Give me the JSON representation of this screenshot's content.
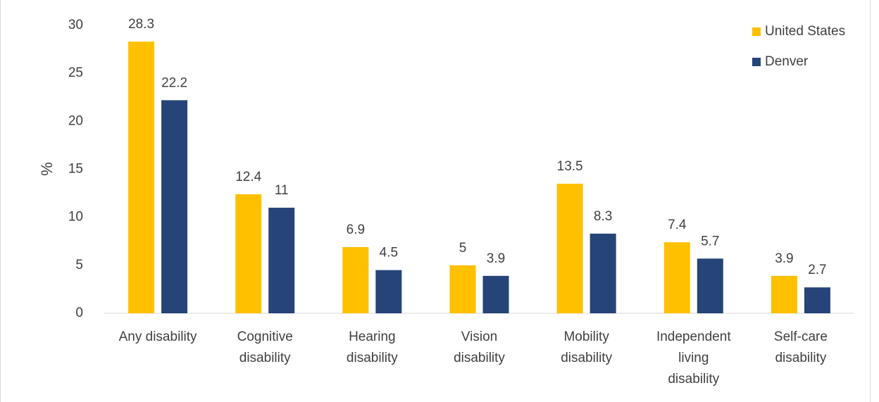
{
  "chart_data": {
    "type": "bar",
    "categories": [
      "Any disability",
      "Cognitive disability",
      "Hearing disability",
      "Vision disability",
      "Mobility disability",
      "Independent living disability",
      "Self-care disability"
    ],
    "series": [
      {
        "name": "United States",
        "color": "#ffc000",
        "values": [
          28.3,
          12.4,
          6.9,
          5,
          13.5,
          7.4,
          3.9
        ]
      },
      {
        "name": "Denver",
        "color": "#264478",
        "values": [
          22.2,
          11,
          4.5,
          3.9,
          8.3,
          5.7,
          2.7
        ]
      }
    ],
    "y_label": "%",
    "ylim": [
      0,
      30
    ],
    "yticks": [
      0,
      5,
      10,
      15,
      20,
      25,
      30
    ],
    "grid": false,
    "legend": "top-right",
    "data_labels": true
  }
}
